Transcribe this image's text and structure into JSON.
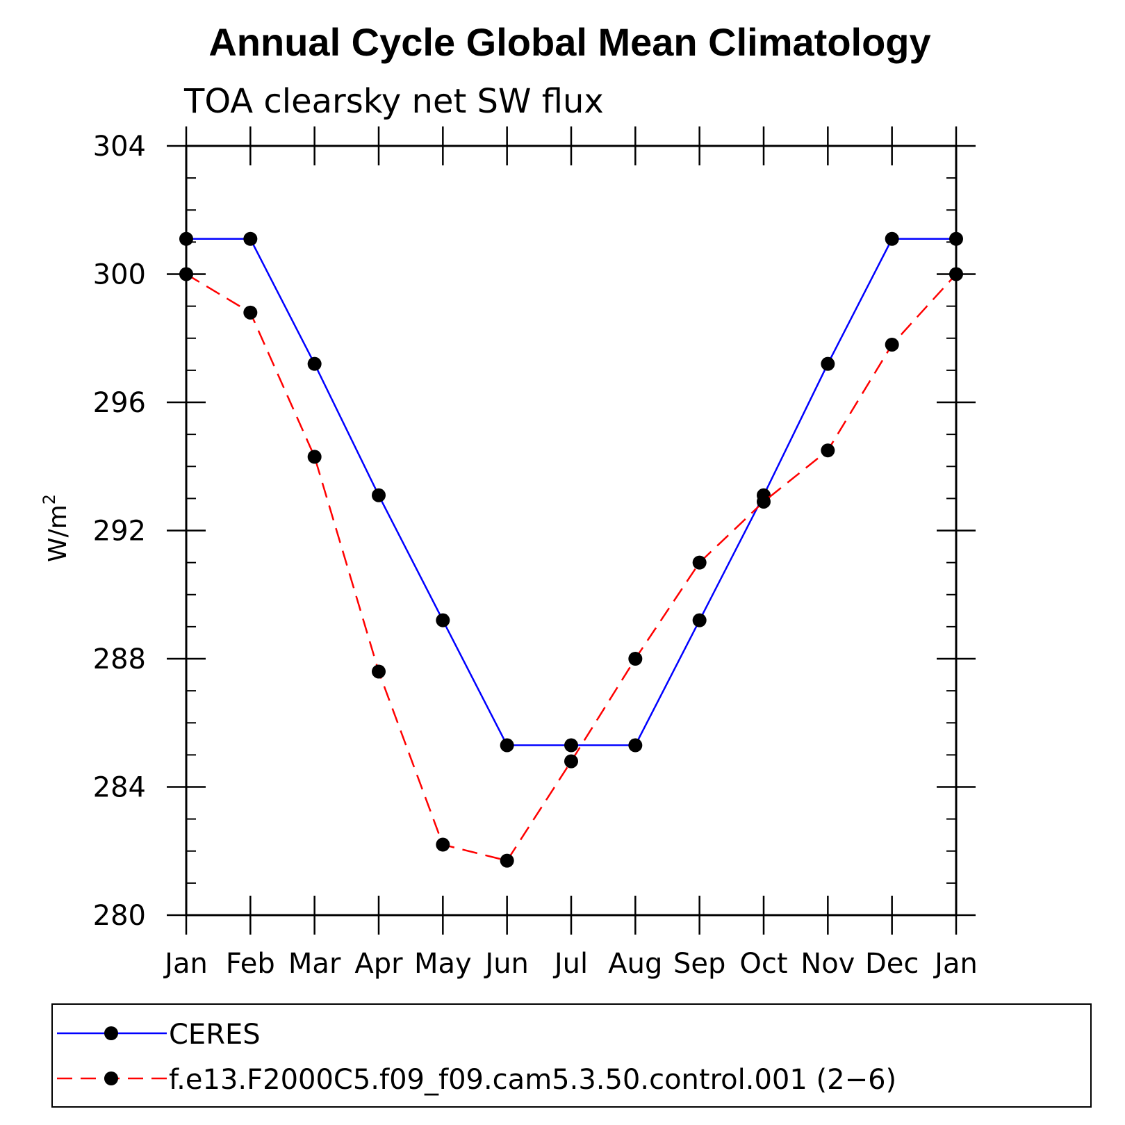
{
  "chart_data": {
    "type": "line",
    "title": "Annual Cycle Global Mean Climatology",
    "subtitle": "TOA clearsky net SW flux",
    "ylabel": "W/m",
    "ylabel_superscript": "2",
    "xlabel": "",
    "categories": [
      "Jan",
      "Feb",
      "Mar",
      "Apr",
      "May",
      "Jun",
      "Jul",
      "Aug",
      "Sep",
      "Oct",
      "Nov",
      "Dec",
      "Jan"
    ],
    "ylim": [
      280,
      304
    ],
    "yticks": [
      "280",
      "284",
      "288",
      "292",
      "296",
      "300",
      "304"
    ],
    "grid": false,
    "legend_position": "bottom",
    "series": [
      {
        "name": "CERES",
        "color": "#0000ff",
        "dash": "solid",
        "values": [
          301.1,
          301.1,
          297.2,
          293.1,
          289.2,
          285.3,
          285.3,
          285.3,
          289.2,
          293.1,
          297.2,
          301.1,
          301.1
        ]
      },
      {
        "name": "f.e13.F2000C5.f09_f09.cam5.3.50.control.001 (2−6)",
        "color": "#ff0000",
        "dash": "dashed",
        "values": [
          300.0,
          298.8,
          294.3,
          287.6,
          282.2,
          281.7,
          284.8,
          288.0,
          291.0,
          292.9,
          294.5,
          297.8,
          300.0
        ]
      }
    ]
  }
}
